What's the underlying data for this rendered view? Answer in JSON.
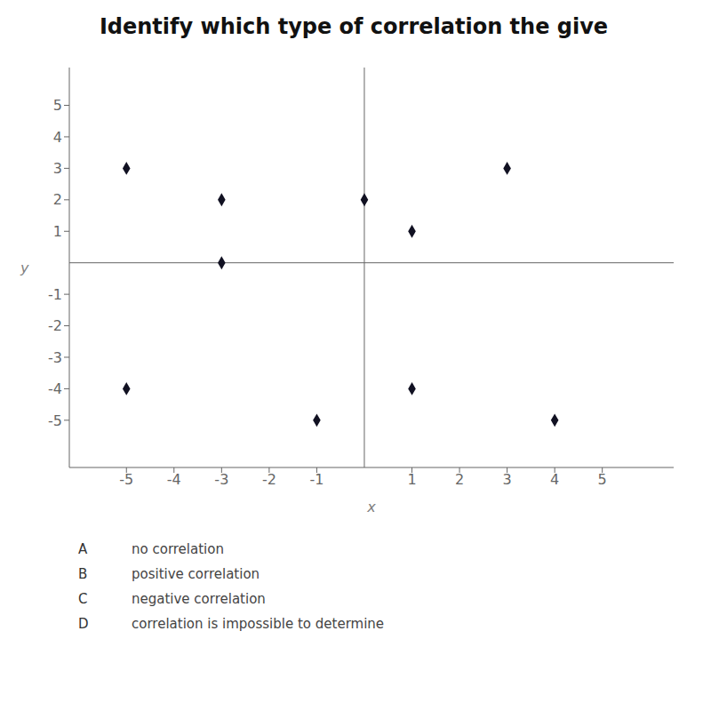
{
  "chart_data": {
    "type": "scatter",
    "title": "Identify which type of correlation the give",
    "x": [
      -5,
      -3,
      -3,
      0,
      1,
      3,
      -5,
      1,
      -1,
      4
    ],
    "y": [
      3,
      2,
      0,
      2,
      1,
      3,
      -4,
      -4,
      -5,
      -5
    ],
    "xlim": [
      -6.2,
      6.5
    ],
    "ylim": [
      -6.5,
      6.2
    ],
    "xticks": [
      -5,
      -4,
      -3,
      -2,
      -1,
      1,
      2,
      3,
      4,
      5
    ],
    "yticks": [
      -5,
      -4,
      -3,
      -2,
      -1,
      1,
      2,
      3,
      4,
      5
    ],
    "xlabel": "x",
    "ylabel": "y",
    "color": "#111122",
    "marker": "diamond",
    "grid": false,
    "annotations": [
      [
        "A",
        "no correlation"
      ],
      [
        "B",
        "positive correlation"
      ],
      [
        "C",
        "negative correlation"
      ],
      [
        "D",
        "correlation is impossible to determine"
      ]
    ]
  }
}
